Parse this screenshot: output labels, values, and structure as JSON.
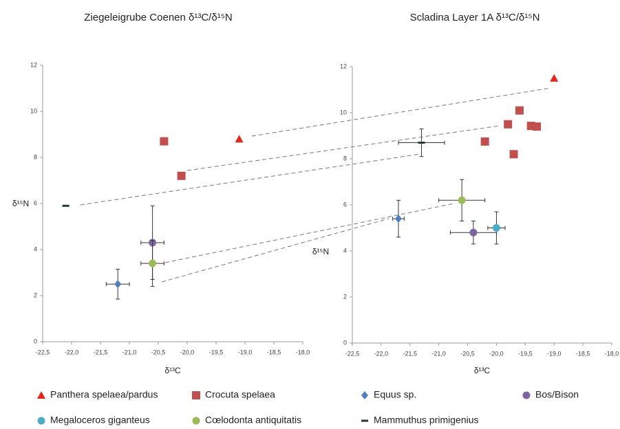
{
  "chart_data": [
    {
      "type": "scatter",
      "title": "Ziegeleigrube Coenen  δ¹³C/δ¹⁵N",
      "x_label": "δ¹³C",
      "y_label": "δ¹⁵N",
      "xlim": [
        -22.5,
        -18.0
      ],
      "ylim": [
        0,
        12
      ],
      "xticks": [
        {
          "value": -22.5,
          "label": "-22,5"
        },
        {
          "value": -22.0,
          "label": "-22,0"
        },
        {
          "value": -21.5,
          "label": "-21,5"
        },
        {
          "value": -21.0,
          "label": "-21,0"
        },
        {
          "value": -20.5,
          "label": "-20,5"
        },
        {
          "value": -20.0,
          "label": "-20,0"
        },
        {
          "value": -19.5,
          "label": "-19,5"
        },
        {
          "value": -19.0,
          "label": "-19,0"
        },
        {
          "value": -18.5,
          "label": "-18,5"
        },
        {
          "value": -18.0,
          "label": "-18,0"
        }
      ],
      "yticks": [
        0,
        2,
        4,
        6,
        8,
        10,
        12
      ],
      "series": [
        {
          "color": "#e8251a",
          "marker": "triangle",
          "x": [
            -19.1
          ],
          "y": [
            8.8
          ]
        },
        {
          "color": "#c0504d",
          "marker": "square",
          "x": [
            -20.4,
            -20.1
          ],
          "y": [
            8.7,
            7.2
          ]
        },
        {
          "color": "#4f7fc0",
          "marker": "diamond",
          "x": [
            -21.2
          ],
          "y": [
            2.5
          ],
          "xerr": [
            0.2
          ],
          "yerr": [
            0.65
          ]
        },
        {
          "color": "#8064a2",
          "marker": "circle",
          "x": [
            -20.6
          ],
          "y": [
            4.3
          ],
          "xerr": [
            0.2
          ],
          "yerr": [
            1.6
          ]
        },
        {
          "color": "#9bbb59",
          "marker": "circle",
          "x": [
            -20.6
          ],
          "y": [
            3.4
          ],
          "xerr": [
            0.2
          ],
          "yerr": [
            1.0
          ]
        },
        {
          "color": "#1f3a3a",
          "marker": "dash",
          "x": [
            -22.1
          ],
          "y": [
            5.9
          ]
        }
      ]
    },
    {
      "type": "scatter",
      "title": "Scladina Layer 1A  δ¹³C/δ¹⁵N",
      "x_label": "δ¹³C",
      "y_label": "δ¹⁵N",
      "xlim": [
        -22.5,
        -18.0
      ],
      "ylim": [
        0,
        12
      ],
      "xticks": [
        {
          "value": -22.5,
          "label": "-22,5"
        },
        {
          "value": -22.0,
          "label": "-22,0"
        },
        {
          "value": -21.5,
          "label": "-21,5"
        },
        {
          "value": -21.0,
          "label": "-21,0"
        },
        {
          "value": -20.5,
          "label": "-20,5"
        },
        {
          "value": -20.0,
          "label": "-20,0"
        },
        {
          "value": -19.5,
          "label": "-19,5"
        },
        {
          "value": -19.0,
          "label": "-19,0"
        },
        {
          "value": -18.5,
          "label": "-18,5"
        },
        {
          "value": -18.0,
          "label": "-18,0"
        }
      ],
      "yticks": [
        0,
        2,
        4,
        6,
        8,
        10,
        12
      ],
      "series": [
        {
          "name": "Panthera spelaea/pardus",
          "color": "#e8251a",
          "marker": "triangle",
          "x": [
            -19.0
          ],
          "y": [
            11.5
          ]
        },
        {
          "name": "Crocuta spelaea",
          "color": "#c0504d",
          "marker": "square",
          "x": [
            -20.2,
            -19.8,
            -19.6,
            -19.4,
            -19.3,
            -19.7
          ],
          "y": [
            8.75,
            9.5,
            10.1,
            9.43,
            9.4,
            8.2
          ]
        },
        {
          "name": "Equus sp.",
          "color": "#4f7fc0",
          "marker": "diamond",
          "x": [
            -21.7
          ],
          "y": [
            5.4
          ],
          "xerr": [
            0.1
          ],
          "yerr": [
            0.8
          ]
        },
        {
          "name": "Bos/Bison",
          "color": "#8064a2",
          "marker": "circle",
          "x": [
            -20.4
          ],
          "y": [
            4.8
          ],
          "xerr": [
            0.4
          ],
          "yerr": [
            0.5
          ]
        },
        {
          "name": "Megaloceros giganteus",
          "color": "#4bacc6",
          "marker": "circle",
          "x": [
            -20.0
          ],
          "y": [
            5.0
          ],
          "xerr": [
            0.15
          ],
          "yerr": [
            0.7
          ]
        },
        {
          "name": "Cœlodonta antiquitatis",
          "color": "#9bbb59",
          "marker": "circle",
          "x": [
            -20.6
          ],
          "y": [
            6.2
          ],
          "xerr": [
            0.4
          ],
          "yerr": [
            0.9
          ]
        },
        {
          "name": "Mammuthus primigenius",
          "color": "#1f3a3a",
          "marker": "dash",
          "x": [
            -21.3
          ],
          "y": [
            8.7
          ],
          "xerr": [
            0.4
          ],
          "yerr": [
            0.6
          ]
        }
      ]
    }
  ]
}
